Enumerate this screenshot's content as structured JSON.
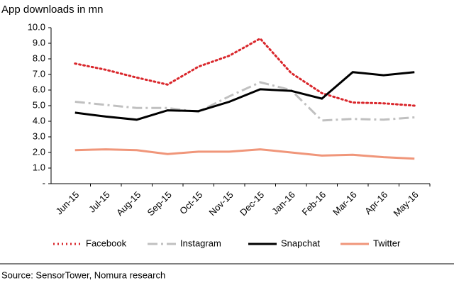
{
  "chart_data": {
    "type": "line",
    "title": "App downloads in mn",
    "categories": [
      "Jun-15",
      "Jul-15",
      "Aug-15",
      "Sep-15",
      "Oct-15",
      "Nov-15",
      "Dec-15",
      "Jan-16",
      "Feb-16",
      "Mar-16",
      "Apr-16",
      "May-16"
    ],
    "series": [
      {
        "name": "Facebook",
        "color": "#d9262b",
        "dash": "2 4",
        "values": [
          7.7,
          7.3,
          6.8,
          6.35,
          7.5,
          8.2,
          9.3,
          7.1,
          5.8,
          5.2,
          5.15,
          5.0
        ]
      },
      {
        "name": "Instagram",
        "color": "#c0c0c0",
        "dash": "14 5 3 5",
        "values": [
          5.25,
          5.05,
          4.85,
          4.85,
          4.6,
          5.6,
          6.5,
          6.0,
          4.05,
          4.15,
          4.1,
          4.25
        ]
      },
      {
        "name": "Snapchat",
        "color": "#000000",
        "dash": "none",
        "values": [
          4.55,
          4.3,
          4.1,
          4.7,
          4.65,
          5.25,
          6.05,
          5.95,
          5.45,
          7.15,
          6.95,
          7.15
        ]
      },
      {
        "name": "Twitter",
        "color": "#f0967a",
        "dash": "none",
        "values": [
          2.15,
          2.2,
          2.15,
          1.9,
          2.05,
          2.05,
          2.2,
          2.0,
          1.8,
          1.85,
          1.7,
          1.6
        ]
      }
    ],
    "ylim": [
      0,
      10
    ],
    "yticks": [
      {
        "value": 0,
        "label": "-"
      },
      {
        "value": 1,
        "label": "1.0"
      },
      {
        "value": 2,
        "label": "2.0"
      },
      {
        "value": 3,
        "label": "3.0"
      },
      {
        "value": 4,
        "label": "4.0"
      },
      {
        "value": 5,
        "label": "5.0"
      },
      {
        "value": 6,
        "label": "6.0"
      },
      {
        "value": 7,
        "label": "7.0"
      },
      {
        "value": 8,
        "label": "8.0"
      },
      {
        "value": 9,
        "label": "9.0"
      },
      {
        "value": 10,
        "label": "10.0"
      }
    ],
    "grid": false,
    "source": "Source: SensorTower, Nomura research"
  }
}
